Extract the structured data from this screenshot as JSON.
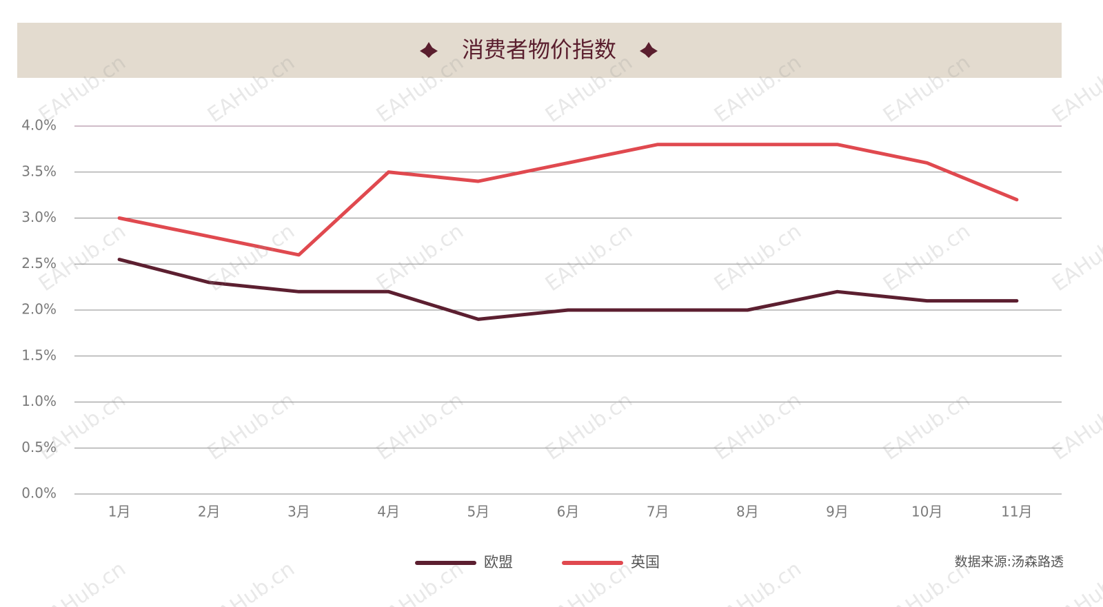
{
  "chart_data": {
    "type": "line",
    "title": "消费者物价指数",
    "categories": [
      "1月",
      "2月",
      "3月",
      "4月",
      "5月",
      "6月",
      "7月",
      "8月",
      "9月",
      "10月",
      "11月"
    ],
    "series": [
      {
        "name": "欧盟",
        "color": "#5c1f30",
        "values": [
          2.55,
          2.3,
          2.2,
          2.2,
          1.9,
          2.0,
          2.0,
          2.0,
          2.2,
          2.1,
          2.1
        ]
      },
      {
        "name": "英国",
        "color": "#e0494f",
        "values": [
          3.0,
          2.8,
          2.6,
          3.5,
          3.4,
          3.6,
          3.8,
          3.8,
          3.8,
          3.6,
          3.2
        ]
      }
    ],
    "ylim": [
      0,
      4
    ],
    "yticks": [
      {
        "value": 0,
        "label": "0.0%"
      },
      {
        "value": 0.5,
        "label": "0.5%"
      },
      {
        "value": 1,
        "label": "1.0%"
      },
      {
        "value": 1.5,
        "label": "1.5%"
      },
      {
        "value": 2,
        "label": "2.0%"
      },
      {
        "value": 2.5,
        "label": "2.5%"
      },
      {
        "value": 3,
        "label": "3.0%"
      },
      {
        "value": 3.5,
        "label": "3.5%"
      },
      {
        "value": 4,
        "label": "4.0%"
      }
    ],
    "grid": true,
    "legend": "bottom",
    "source": "数据来源:汤森路透",
    "watermark": "EAHub.cn"
  }
}
